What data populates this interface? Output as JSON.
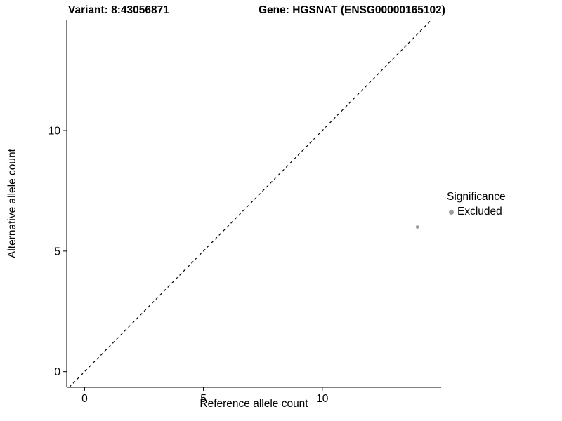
{
  "chart_data": {
    "type": "scatter",
    "title_left": "Variant: 8:43056871",
    "title_right": "Gene: HGSNAT (ENSG00000165102)",
    "xlabel": "Reference allele count",
    "ylabel": "Alternative allele count",
    "xlim": [
      -0.75,
      15.0
    ],
    "ylim": [
      -0.65,
      14.6
    ],
    "xticks": [
      0,
      5,
      10
    ],
    "yticks": [
      0,
      5,
      10
    ],
    "grid": false,
    "identity_line": {
      "style": "dashed",
      "color": "#000000",
      "note": "y = x diagonal reference line"
    },
    "points": [
      {
        "x": 14,
        "y": 6,
        "series": "Excluded",
        "color": "#9e9e9e"
      }
    ],
    "legend": {
      "title": "Significance",
      "position": "right",
      "entries": [
        {
          "label": "Excluded",
          "color": "#9e9e9e"
        }
      ]
    }
  }
}
